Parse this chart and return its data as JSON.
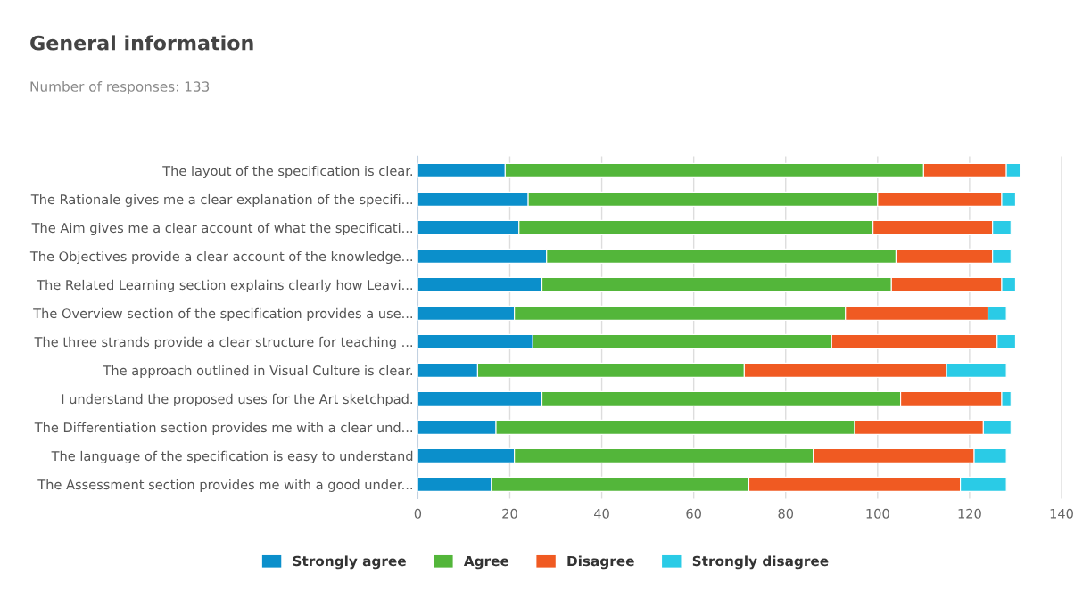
{
  "chart_data": {
    "type": "bar",
    "orientation": "horizontal",
    "stacked": true,
    "title": "General information",
    "subtitle": "Number of responses: 133",
    "categories": [
      "The layout of the specification is clear.",
      "The Rationale gives me a clear explanation of the specifi...",
      "The Aim gives me a clear account of what the specificati...",
      "The Objectives provide a clear account of the knowledge...",
      "The Related Learning section explains clearly how Leavi...",
      "The Overview section of the specification provides a use...",
      "The three strands provide a clear structure for teaching ...",
      "The approach outlined in Visual Culture is clear.",
      "I understand the proposed uses for the Art sketchpad.",
      "The Differentiation section provides me with a clear und...",
      "The language of the specification is easy to understand",
      "The Assessment section provides me with a good under..."
    ],
    "series": [
      {
        "name": "Strongly agree",
        "color": "#0b8fcb",
        "values": [
          19,
          24,
          22,
          28,
          27,
          21,
          25,
          13,
          27,
          17,
          21,
          16
        ]
      },
      {
        "name": "Agree",
        "color": "#53b63a",
        "values": [
          91,
          76,
          77,
          76,
          76,
          72,
          65,
          58,
          78,
          78,
          65,
          56
        ]
      },
      {
        "name": "Disagree",
        "color": "#f05a22",
        "values": [
          18,
          27,
          26,
          21,
          24,
          31,
          36,
          44,
          22,
          28,
          35,
          46
        ]
      },
      {
        "name": "Strongly disagree",
        "color": "#2acbe6",
        "values": [
          3,
          3,
          4,
          4,
          3,
          4,
          4,
          13,
          2,
          6,
          7,
          10
        ]
      }
    ],
    "xlim": [
      0,
      140
    ],
    "xticks": [
      0,
      20,
      40,
      60,
      80,
      100,
      120,
      140
    ],
    "grid": "x",
    "legend": "bottom"
  }
}
